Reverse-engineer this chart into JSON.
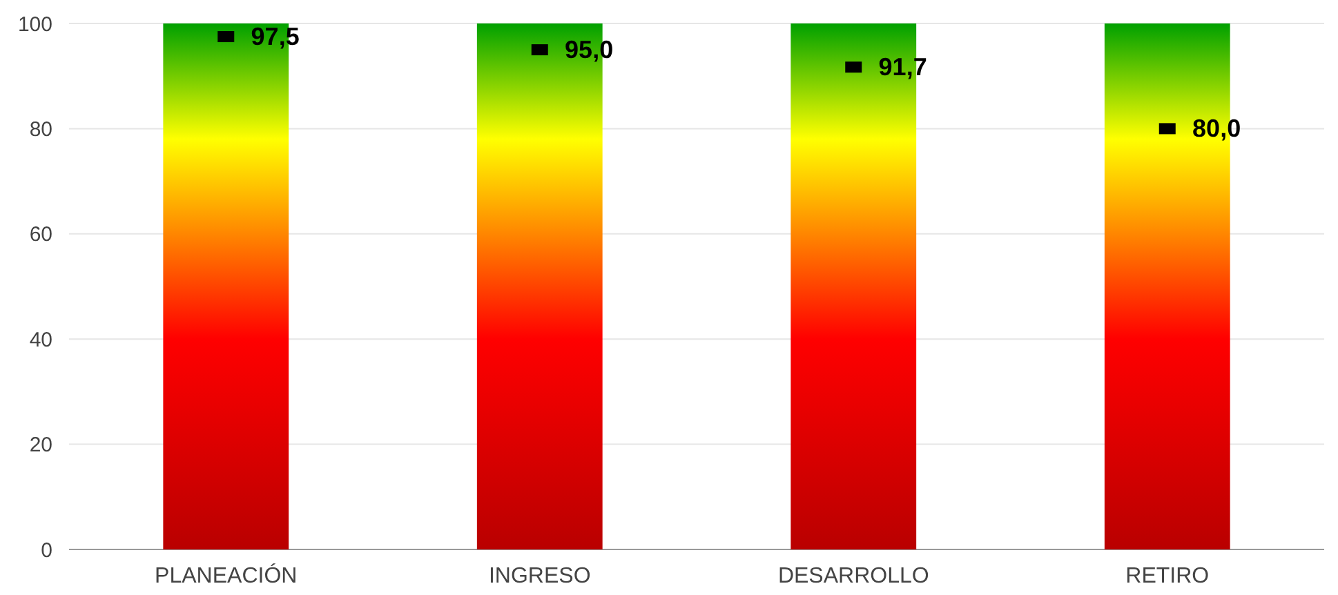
{
  "chart_data": {
    "type": "bar",
    "categories": [
      "PLANEACIÓN",
      "INGRESO",
      "DESARROLLO",
      "RETIRO"
    ],
    "series": [
      {
        "color": "#ff0000",
        "values": [
          100,
          100,
          100,
          100
        ]
      },
      {
        "type": "scatter",
        "color": "#000000",
        "values": [
          97.5,
          95.0,
          91.7,
          80.0
        ],
        "value_labels": [
          "97,5",
          "95,0",
          "91,7",
          "80,0"
        ]
      }
    ],
    "ylim": [
      0,
      100
    ],
    "yticks": [
      0,
      20,
      40,
      60,
      80,
      100
    ],
    "grid": "y",
    "marker": "square"
  }
}
